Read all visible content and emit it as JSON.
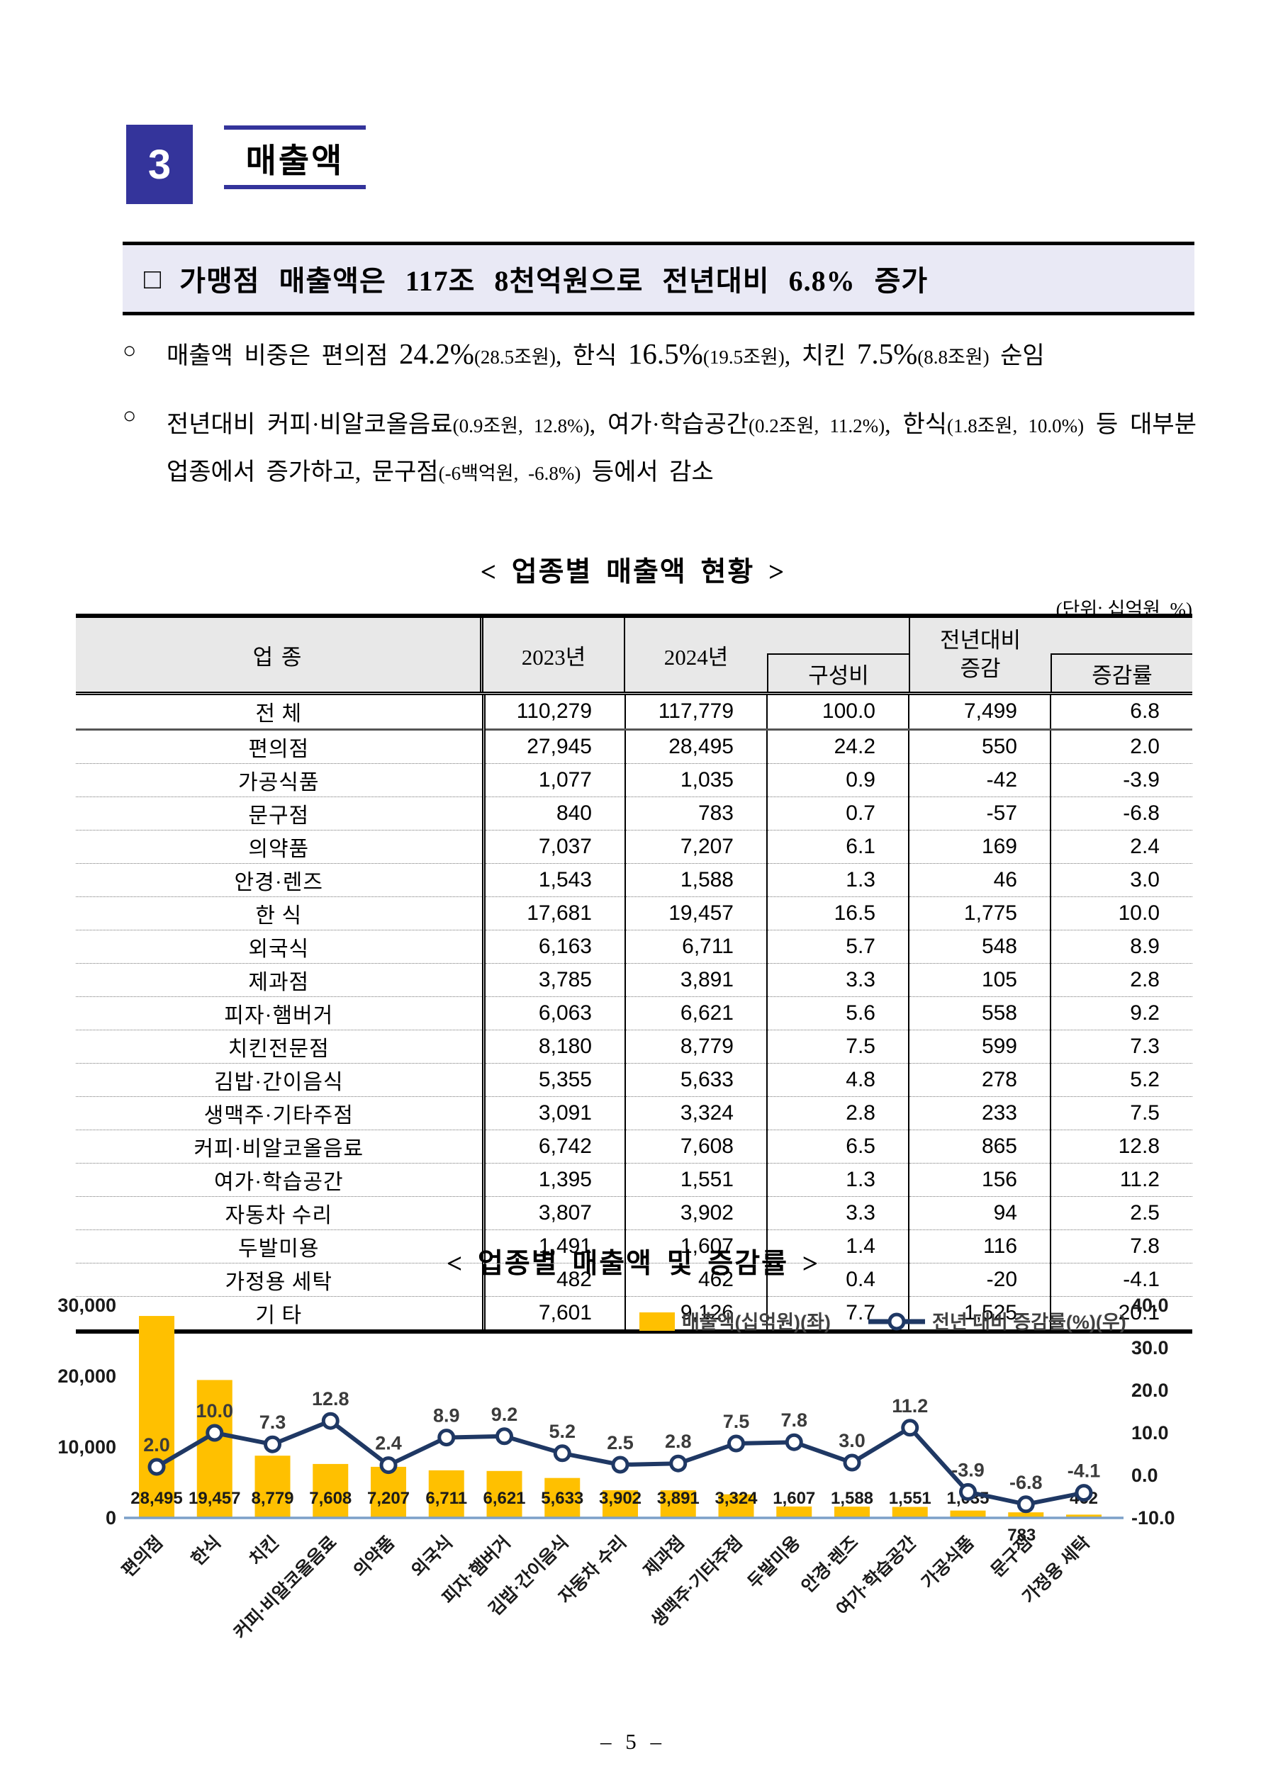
{
  "page": {
    "section_number": "3",
    "section_title": "매출액",
    "page_number": "– 5 –"
  },
  "theme": {
    "accent_blue": "#34349B",
    "headline_bg": "#E9E9F5",
    "table_header_bg": "#E8E8E8",
    "bar_color": "#FFC000",
    "line_color": "#1F3864",
    "axis_line_color": "#7CA0C8"
  },
  "headline": {
    "marker": "□",
    "text": "가맹점 매출액은 117조 8천억원으로 전년대비 6.8% 증가"
  },
  "bullets": [
    {
      "marker": "○",
      "segments": [
        {
          "style": "main",
          "text": "매출액 비중은 편의점 "
        },
        {
          "style": "num",
          "text": "24.2%"
        },
        {
          "style": "small",
          "text": "(28.5조원)"
        },
        {
          "style": "main",
          "text": ", 한식 "
        },
        {
          "style": "num",
          "text": "16.5%"
        },
        {
          "style": "small",
          "text": "(19.5조원)"
        },
        {
          "style": "main",
          "text": ", 치킨 "
        },
        {
          "style": "num",
          "text": "7.5%"
        },
        {
          "style": "small",
          "text": "(8.8조원)"
        },
        {
          "style": "main",
          "text": " 순임"
        }
      ]
    },
    {
      "marker": "○",
      "segments": [
        {
          "style": "main",
          "text": "전년대비 커피·비알코올음료"
        },
        {
          "style": "small",
          "text": "(0.9조원, 12.8%)"
        },
        {
          "style": "main",
          "text": ", 여가·학습공간"
        },
        {
          "style": "small",
          "text": "(0.2조원, 11.2%)"
        },
        {
          "style": "main",
          "text": ", 한식"
        },
        {
          "style": "small",
          "text": "(1.8조원, 10.0%)"
        },
        {
          "style": "main",
          "text": " 등 대부분 업종에서 증가하고, 문구점"
        },
        {
          "style": "small",
          "text": "(-6백억원, -6.8%)"
        },
        {
          "style": "main",
          "text": " 등에서 감소"
        }
      ]
    }
  ],
  "table": {
    "title": "< 업종별 매출액 현황 >",
    "unit_note": "(단위: 십억원, %)",
    "header": {
      "category": "업   종",
      "y2023": "2023년",
      "y2024": "2024년",
      "ratio": "구성비",
      "yoy_line1": "전년대비",
      "yoy_line2": "증감",
      "rate": "증감률"
    },
    "rows": [
      {
        "label": "전   체",
        "y2023": "110,279",
        "y2024": "117,779",
        "ratio": "100.0",
        "change": "7,499",
        "rate": "6.8",
        "total": true
      },
      {
        "label": "편의점",
        "y2023": "27,945",
        "y2024": "28,495",
        "ratio": "24.2",
        "change": "550",
        "rate": "2.0"
      },
      {
        "label": "가공식품",
        "y2023": "1,077",
        "y2024": "1,035",
        "ratio": "0.9",
        "change": "-42",
        "rate": "-3.9"
      },
      {
        "label": "문구점",
        "y2023": "840",
        "y2024": "783",
        "ratio": "0.7",
        "change": "-57",
        "rate": "-6.8"
      },
      {
        "label": "의약품",
        "y2023": "7,037",
        "y2024": "7,207",
        "ratio": "6.1",
        "change": "169",
        "rate": "2.4"
      },
      {
        "label": "안경·렌즈",
        "y2023": "1,543",
        "y2024": "1,588",
        "ratio": "1.3",
        "change": "46",
        "rate": "3.0"
      },
      {
        "label": "한   식",
        "y2023": "17,681",
        "y2024": "19,457",
        "ratio": "16.5",
        "change": "1,775",
        "rate": "10.0"
      },
      {
        "label": "외국식",
        "y2023": "6,163",
        "y2024": "6,711",
        "ratio": "5.7",
        "change": "548",
        "rate": "8.9"
      },
      {
        "label": "제과점",
        "y2023": "3,785",
        "y2024": "3,891",
        "ratio": "3.3",
        "change": "105",
        "rate": "2.8"
      },
      {
        "label": "피자·햄버거",
        "y2023": "6,063",
        "y2024": "6,621",
        "ratio": "5.6",
        "change": "558",
        "rate": "9.2"
      },
      {
        "label": "치킨전문점",
        "y2023": "8,180",
        "y2024": "8,779",
        "ratio": "7.5",
        "change": "599",
        "rate": "7.3"
      },
      {
        "label": "김밥·간이음식",
        "y2023": "5,355",
        "y2024": "5,633",
        "ratio": "4.8",
        "change": "278",
        "rate": "5.2"
      },
      {
        "label": "생맥주·기타주점",
        "y2023": "3,091",
        "y2024": "3,324",
        "ratio": "2.8",
        "change": "233",
        "rate": "7.5"
      },
      {
        "label": "커피·비알코올음료",
        "y2023": "6,742",
        "y2024": "7,608",
        "ratio": "6.5",
        "change": "865",
        "rate": "12.8"
      },
      {
        "label": "여가·학습공간",
        "y2023": "1,395",
        "y2024": "1,551",
        "ratio": "1.3",
        "change": "156",
        "rate": "11.2"
      },
      {
        "label": "자동차 수리",
        "y2023": "3,807",
        "y2024": "3,902",
        "ratio": "3.3",
        "change": "94",
        "rate": "2.5"
      },
      {
        "label": "두발미용",
        "y2023": "1,491",
        "y2024": "1,607",
        "ratio": "1.4",
        "change": "116",
        "rate": "7.8"
      },
      {
        "label": "가정용 세탁",
        "y2023": "482",
        "y2024": "462",
        "ratio": "0.4",
        "change": "-20",
        "rate": "-4.1"
      },
      {
        "label": "기   타",
        "y2023": "7,601",
        "y2024": "9,126",
        "ratio": "7.7",
        "change": "1,525",
        "rate": "20.1"
      }
    ]
  },
  "chart_data": {
    "type": "bar+line",
    "title": "< 업종별 매출액 및 증감률 >",
    "categories": [
      "편의점",
      "한식",
      "치킨",
      "커피·비알코올음료",
      "의약품",
      "외국식",
      "피자·햄버거",
      "김밥·간이음식",
      "자동차 수리",
      "제과점",
      "생맥주·기타주점",
      "두발미용",
      "안경·렌즈",
      "여가·학습공간",
      "가공식품",
      "문구점",
      "가정용 세탁"
    ],
    "series": [
      {
        "name": "매출액(십억원)(좌)",
        "type": "bar",
        "axis": "left",
        "color": "#FFC000",
        "values": [
          28495,
          19457,
          8779,
          7608,
          7207,
          6711,
          6621,
          5633,
          3902,
          3891,
          3324,
          1607,
          1588,
          1551,
          1035,
          783,
          462
        ],
        "value_labels": [
          "28,495",
          "19,457",
          "8,779",
          "7,608",
          "7,207",
          "6,711",
          "6,621",
          "5,633",
          "3,902",
          "3,891",
          "3,324",
          "1,607",
          "1,588",
          "1,551",
          "1,035",
          "783",
          "462"
        ]
      },
      {
        "name": "전년 대비 증감률(%)(우)",
        "type": "line",
        "axis": "right",
        "color": "#1F3864",
        "marker": "circle",
        "values": [
          2.0,
          10.0,
          7.3,
          12.8,
          2.4,
          8.9,
          9.2,
          5.2,
          2.5,
          2.8,
          7.5,
          7.8,
          3.0,
          11.2,
          -3.9,
          -6.8,
          -4.1
        ],
        "value_labels": [
          "2.0",
          "10.0",
          "7.3",
          "12.8",
          "2.4",
          "8.9",
          "9.2",
          "5.2",
          "2.5",
          "2.8",
          "7.5",
          "7.8",
          "3.0",
          "11.2",
          "-3.9",
          "-6.8",
          "-4.1"
        ]
      }
    ],
    "left_axis": {
      "min": 0,
      "max": 30000,
      "tick_labels": [
        "0",
        "10,000",
        "20,000",
        "30,000"
      ]
    },
    "right_axis": {
      "min": -10,
      "max": 40,
      "tick_labels": [
        "-10.0",
        "0.0",
        "10.0",
        "20.0",
        "30.0",
        "40.0"
      ]
    },
    "grid": "off",
    "legend_position": "top-inside"
  }
}
